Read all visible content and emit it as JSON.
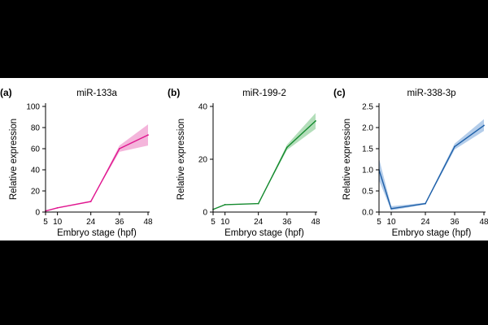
{
  "chart_data": [
    {
      "panel": "(a)",
      "type": "line",
      "title": "miR-133a",
      "xlabel": "Embryo stage (hpf)",
      "ylabel": "Relative expression",
      "x": [
        5,
        10,
        24,
        36,
        48
      ],
      "xticks": [
        "5",
        "10",
        "24",
        "36",
        "48"
      ],
      "ylim": [
        0,
        100
      ],
      "yticks": [
        "0",
        "20",
        "40",
        "60",
        "80",
        "100"
      ],
      "series": [
        {
          "name": "miR-133a",
          "values": [
            1,
            4,
            10,
            60,
            73
          ],
          "lower": [
            1,
            4,
            10,
            57,
            63
          ],
          "upper": [
            1,
            4,
            10,
            63,
            83
          ],
          "color": "#e0158f",
          "band_color": "#f2a8d5"
        }
      ]
    },
    {
      "panel": "(b)",
      "type": "line",
      "title": "miR-199-2",
      "xlabel": "Embryo stage (hpf)",
      "ylabel": "Relative expression",
      "x": [
        5,
        10,
        24,
        36,
        48
      ],
      "xticks": [
        "5",
        "10",
        "24",
        "36",
        "48"
      ],
      "ylim": [
        0,
        40
      ],
      "yticks": [
        "0",
        "20",
        "40"
      ],
      "series": [
        {
          "name": "miR-199-2",
          "values": [
            1,
            2.8,
            3.2,
            24.5,
            34.5
          ],
          "lower": [
            1,
            2.8,
            3.2,
            23.5,
            31.5
          ],
          "upper": [
            1,
            2.8,
            3.2,
            25.5,
            37.5
          ],
          "color": "#148a2e",
          "band_color": "#a6d8ae"
        }
      ]
    },
    {
      "panel": "(c)",
      "type": "line",
      "title": "miR-338-3p",
      "xlabel": "Embryo stage (hpf)",
      "ylabel": "Relative expression",
      "x": [
        5,
        10,
        24,
        36,
        48
      ],
      "xticks": [
        "5",
        "10",
        "24",
        "36",
        "48"
      ],
      "ylim": [
        0,
        2.5
      ],
      "yticks": [
        "0.0",
        "0.5",
        "1.0",
        "1.5",
        "2.0",
        "2.5"
      ],
      "series": [
        {
          "name": "miR-338-3p",
          "values": [
            1.0,
            0.08,
            0.2,
            1.55,
            2.05
          ],
          "lower": [
            0.75,
            0.04,
            0.18,
            1.48,
            1.92
          ],
          "upper": [
            1.27,
            0.14,
            0.22,
            1.62,
            2.2
          ],
          "color": "#1d5fa8",
          "band_color": "#a7c4e6"
        }
      ]
    }
  ]
}
